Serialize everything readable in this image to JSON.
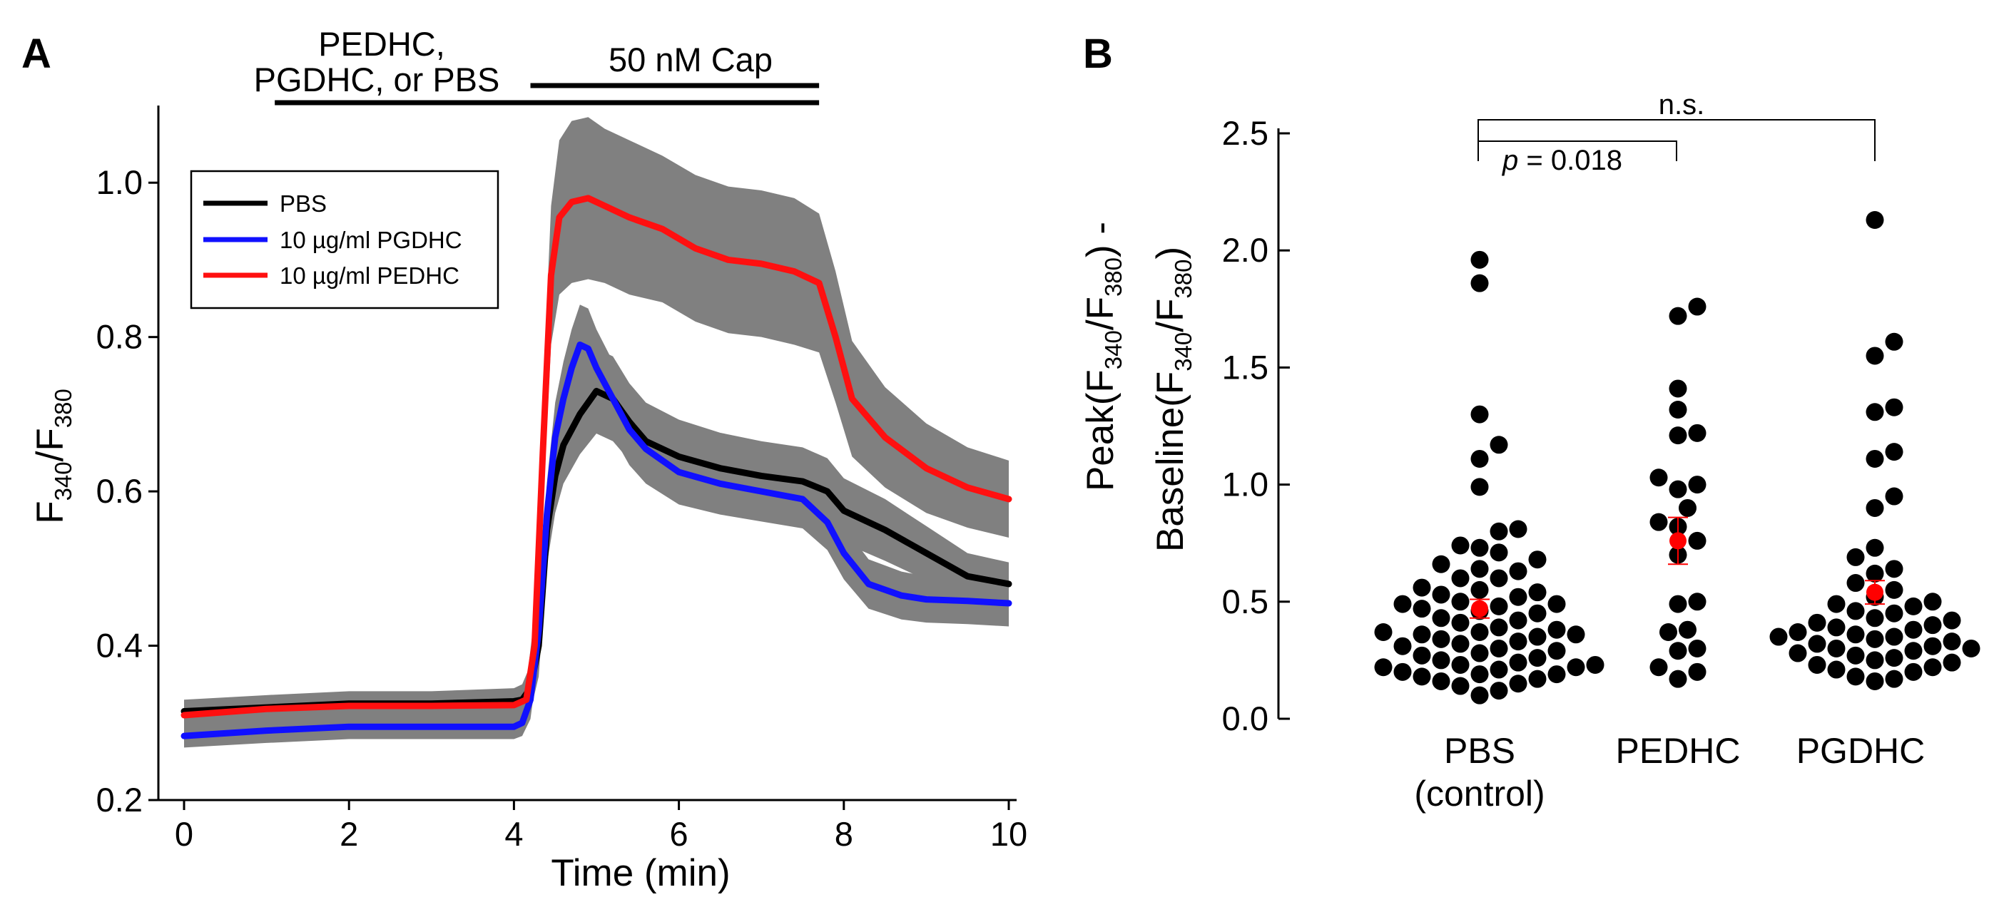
{
  "panels": {
    "a_label": "A",
    "b_label": "B"
  },
  "chart_data": [
    {
      "type": "line",
      "panel": "A",
      "title": "",
      "xlabel": "Time (min)",
      "ylabel_main": "F",
      "ylabel_sub1": "340",
      "ylabel_slash": "/F",
      "ylabel_sub2": "380",
      "xlim": [
        -0.2,
        10.1
      ],
      "ylim": [
        0.2,
        1.1
      ],
      "xticks": [
        0,
        2,
        4,
        6,
        8,
        10
      ],
      "xtick_labels": [
        "0",
        "2",
        "4",
        "6",
        "8",
        "10"
      ],
      "yticks": [
        0.2,
        0.4,
        0.6,
        0.8,
        1.0
      ],
      "ytick_labels": [
        "0.2",
        "0.4",
        "0.6",
        "0.8",
        "1.0"
      ],
      "annotations": {
        "treatment_line1": "PEDHC,",
        "treatment_line2": "PGDHC, or PBS",
        "treatment_range": [
          1.1,
          7.7
        ],
        "cap_label": "50 nM Cap",
        "cap_range": [
          4.2,
          7.7
        ]
      },
      "legend": {
        "position": "upper-left",
        "entries": [
          "PBS",
          "10 µg/ml PGDHC",
          "10 µg/ml PEDHC"
        ]
      },
      "shading_color": "#808080",
      "series": [
        {
          "name": "PBS",
          "color": "#000000",
          "x": [
            0,
            1,
            2,
            3,
            4,
            4.1,
            4.2,
            4.3,
            4.4,
            4.5,
            4.6,
            4.8,
            5.0,
            5.2,
            5.4,
            5.6,
            6.0,
            6.5,
            7.0,
            7.5,
            7.8,
            8.0,
            8.5,
            9.0,
            9.5,
            10.0
          ],
          "y": [
            0.315,
            0.32,
            0.325,
            0.325,
            0.328,
            0.33,
            0.345,
            0.4,
            0.55,
            0.62,
            0.66,
            0.7,
            0.73,
            0.72,
            0.69,
            0.665,
            0.645,
            0.63,
            0.62,
            0.613,
            0.6,
            0.575,
            0.55,
            0.52,
            0.49,
            0.48
          ],
          "err": [
            0.015,
            0.016,
            0.016,
            0.016,
            0.017,
            0.02,
            0.03,
            0.04,
            0.045,
            0.048,
            0.05,
            0.052,
            0.055,
            0.055,
            0.05,
            0.05,
            0.048,
            0.046,
            0.045,
            0.044,
            0.043,
            0.042,
            0.04,
            0.035,
            0.03,
            0.028
          ]
        },
        {
          "name": "10 µg/ml PGDHC",
          "color": "#1010ff",
          "x": [
            0,
            1,
            2,
            3,
            4,
            4.1,
            4.2,
            4.3,
            4.4,
            4.5,
            4.6,
            4.7,
            4.8,
            4.9,
            5.0,
            5.2,
            5.4,
            5.6,
            6.0,
            6.5,
            7.0,
            7.5,
            7.8,
            8.0,
            8.3,
            8.7,
            9.0,
            9.5,
            10.0
          ],
          "y": [
            0.283,
            0.29,
            0.295,
            0.295,
            0.295,
            0.3,
            0.33,
            0.42,
            0.57,
            0.67,
            0.72,
            0.76,
            0.79,
            0.785,
            0.76,
            0.72,
            0.68,
            0.655,
            0.625,
            0.61,
            0.6,
            0.59,
            0.56,
            0.52,
            0.48,
            0.465,
            0.46,
            0.458,
            0.455
          ],
          "err": [
            0.015,
            0.016,
            0.016,
            0.016,
            0.016,
            0.017,
            0.025,
            0.035,
            0.042,
            0.045,
            0.048,
            0.05,
            0.052,
            0.052,
            0.05,
            0.048,
            0.046,
            0.045,
            0.042,
            0.04,
            0.039,
            0.038,
            0.036,
            0.034,
            0.032,
            0.031,
            0.03,
            0.03,
            0.03
          ]
        },
        {
          "name": "10 µg/ml PEDHC",
          "color": "#ff1010",
          "x": [
            0,
            1,
            2,
            3,
            4,
            4.15,
            4.25,
            4.35,
            4.45,
            4.55,
            4.7,
            4.9,
            5.1,
            5.4,
            5.8,
            6.2,
            6.6,
            7.0,
            7.4,
            7.7,
            7.9,
            8.1,
            8.5,
            9.0,
            9.5,
            10.0
          ],
          "y": [
            0.31,
            0.318,
            0.322,
            0.322,
            0.323,
            0.33,
            0.4,
            0.65,
            0.88,
            0.955,
            0.975,
            0.98,
            0.97,
            0.955,
            0.94,
            0.915,
            0.9,
            0.895,
            0.885,
            0.87,
            0.8,
            0.72,
            0.67,
            0.63,
            0.605,
            0.59
          ],
          "err": [
            0.015,
            0.016,
            0.016,
            0.016,
            0.017,
            0.02,
            0.04,
            0.07,
            0.09,
            0.1,
            0.105,
            0.105,
            0.1,
            0.1,
            0.095,
            0.095,
            0.095,
            0.095,
            0.095,
            0.09,
            0.085,
            0.075,
            0.065,
            0.058,
            0.052,
            0.05
          ]
        }
      ]
    },
    {
      "type": "scatter",
      "panel": "B",
      "title": "",
      "xlabel": "",
      "ylabel_line1": "Peak(F340/F380) -",
      "ylabel_line2": "Baseline(F340/F380)",
      "ylim": [
        0.0,
        2.5
      ],
      "yticks": [
        0.0,
        0.5,
        1.0,
        1.5,
        2.0,
        2.5
      ],
      "ytick_labels": [
        "0.0",
        "0.5",
        "1.0",
        "1.5",
        "2.0",
        "2.5"
      ],
      "categories": [
        "PBS (control)",
        "PEDHC",
        "PGDHC"
      ],
      "category_label_lines": [
        [
          "PBS",
          "(control)"
        ],
        [
          "PEDHC"
        ],
        [
          "PGDHC"
        ]
      ],
      "significance": [
        {
          "groups": [
            "PBS (control)",
            "PEDHC"
          ],
          "italic": "p",
          "text": " = 0.018"
        },
        {
          "groups": [
            "PBS (control)",
            "PGDHC"
          ],
          "italic": "",
          "text": "n.s."
        }
      ],
      "mean_color": "#ff0000",
      "groups": [
        {
          "name": "PBS (control)",
          "values": [
            1.96,
            1.86,
            1.3,
            1.17,
            1.11,
            0.99,
            0.81,
            0.8,
            0.74,
            0.73,
            0.71,
            0.68,
            0.66,
            0.64,
            0.63,
            0.6,
            0.6,
            0.56,
            0.55,
            0.54,
            0.53,
            0.52,
            0.5,
            0.49,
            0.49,
            0.48,
            0.47,
            0.46,
            0.45,
            0.43,
            0.42,
            0.41,
            0.39,
            0.38,
            0.37,
            0.37,
            0.36,
            0.36,
            0.35,
            0.34,
            0.33,
            0.32,
            0.31,
            0.3,
            0.29,
            0.28,
            0.27,
            0.26,
            0.25,
            0.24,
            0.23,
            0.23,
            0.22,
            0.22,
            0.21,
            0.2,
            0.19,
            0.19,
            0.18,
            0.17,
            0.16,
            0.15,
            0.14,
            0.12,
            0.1
          ],
          "mean": 0.47,
          "sem": 0.04
        },
        {
          "name": "PEDHC",
          "values": [
            1.76,
            1.72,
            1.41,
            1.32,
            1.22,
            1.21,
            1.03,
            1.0,
            0.98,
            0.9,
            0.84,
            0.82,
            0.76,
            0.7,
            0.5,
            0.49,
            0.38,
            0.37,
            0.3,
            0.29,
            0.22,
            0.2,
            0.17
          ],
          "mean": 0.76,
          "sem": 0.1
        },
        {
          "name": "PGDHC",
          "values": [
            2.13,
            1.61,
            1.55,
            1.33,
            1.31,
            1.14,
            1.11,
            0.95,
            0.9,
            0.73,
            0.69,
            0.64,
            0.62,
            0.58,
            0.55,
            0.52,
            0.5,
            0.49,
            0.48,
            0.46,
            0.45,
            0.43,
            0.42,
            0.41,
            0.4,
            0.39,
            0.38,
            0.37,
            0.36,
            0.35,
            0.35,
            0.34,
            0.33,
            0.32,
            0.31,
            0.3,
            0.3,
            0.29,
            0.28,
            0.27,
            0.26,
            0.25,
            0.24,
            0.23,
            0.22,
            0.21,
            0.2,
            0.18,
            0.17,
            0.16
          ],
          "mean": 0.54,
          "sem": 0.05
        }
      ]
    }
  ]
}
